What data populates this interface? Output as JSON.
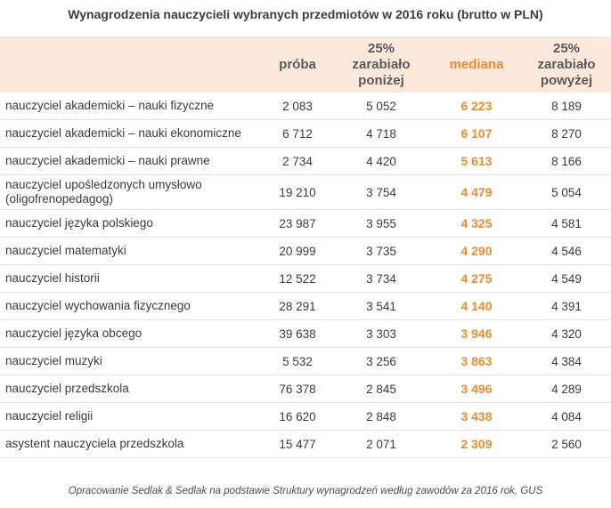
{
  "title": "Wynagrodzenia nauczycieli wybranych przedmiotów w 2016 roku (brutto w PLN)",
  "headers": {
    "proba": "próba",
    "q25": [
      "25%",
      "zarabiało",
      "poniżej"
    ],
    "mediana": "mediana",
    "q75": [
      "25%",
      "zarabiało",
      "powyżej"
    ]
  },
  "chart_data": {
    "type": "table",
    "title": "Wynagrodzenia nauczycieli wybranych przedmiotów w 2016 roku (brutto w PLN)",
    "columns": [
      "próba",
      "25% zarabiało poniżej",
      "mediana",
      "25% zarabiało powyżej"
    ],
    "rows": [
      {
        "name": "nauczyciel akademicki – nauki fizyczne",
        "proba": "2 083",
        "q25": "5 052",
        "mediana": "6 223",
        "q75": "8 189"
      },
      {
        "name": "nauczyciel akademicki – nauki ekonomiczne",
        "proba": "6 712",
        "q25": "4 718",
        "mediana": "6 107",
        "q75": "8 270"
      },
      {
        "name": "nauczyciel akademicki – nauki prawne",
        "proba": "2 734",
        "q25": "4 420",
        "mediana": "5 613",
        "q75": "8 166"
      },
      {
        "name": "nauczyciel upośledzonych umysłowo (oligofrenopedagog)",
        "proba": "19 210",
        "q25": "3 754",
        "mediana": "4 479",
        "q75": "5 054"
      },
      {
        "name": "nauczyciel języka polskiego",
        "proba": "23 987",
        "q25": "3 955",
        "mediana": "4 325",
        "q75": "4 581"
      },
      {
        "name": "nauczyciel matematyki",
        "proba": "20 999",
        "q25": "3 735",
        "mediana": "4 290",
        "q75": "4 546"
      },
      {
        "name": "nauczyciel historii",
        "proba": "12 522",
        "q25": "3 734",
        "mediana": "4 275",
        "q75": "4 549"
      },
      {
        "name": "nauczyciel wychowania fizycznego",
        "proba": "28 291",
        "q25": "3 541",
        "mediana": "4 140",
        "q75": "4 391"
      },
      {
        "name": "nauczyciel języka obcego",
        "proba": "39 638",
        "q25": "3 303",
        "mediana": "3 946",
        "q75": "4 320"
      },
      {
        "name": "nauczyciel muzyki",
        "proba": "5 532",
        "q25": "3 256",
        "mediana": "3 863",
        "q75": "4 384"
      },
      {
        "name": "nauczyciel przedszkola",
        "proba": "76 378",
        "q25": "2 845",
        "mediana": "3 496",
        "q75": "4 289"
      },
      {
        "name": "nauczyciel religii",
        "proba": "16 620",
        "q25": "2 848",
        "mediana": "3 438",
        "q75": "4 084"
      },
      {
        "name": "asystent nauczyciela przedszkola",
        "proba": "15 477",
        "q25": "2 071",
        "mediana": "2 309",
        "q75": "2 560"
      }
    ]
  },
  "source": "Opracowanie Sedlak & Sedlak na podstawie Struktury wynagrodzeń według zawodów za 2016 rok, GUS",
  "colors": {
    "accent": "#ef8a2a",
    "header_bg": "#fce9db",
    "row_line": "#e3e3e3",
    "text": "#3a3a3a"
  }
}
